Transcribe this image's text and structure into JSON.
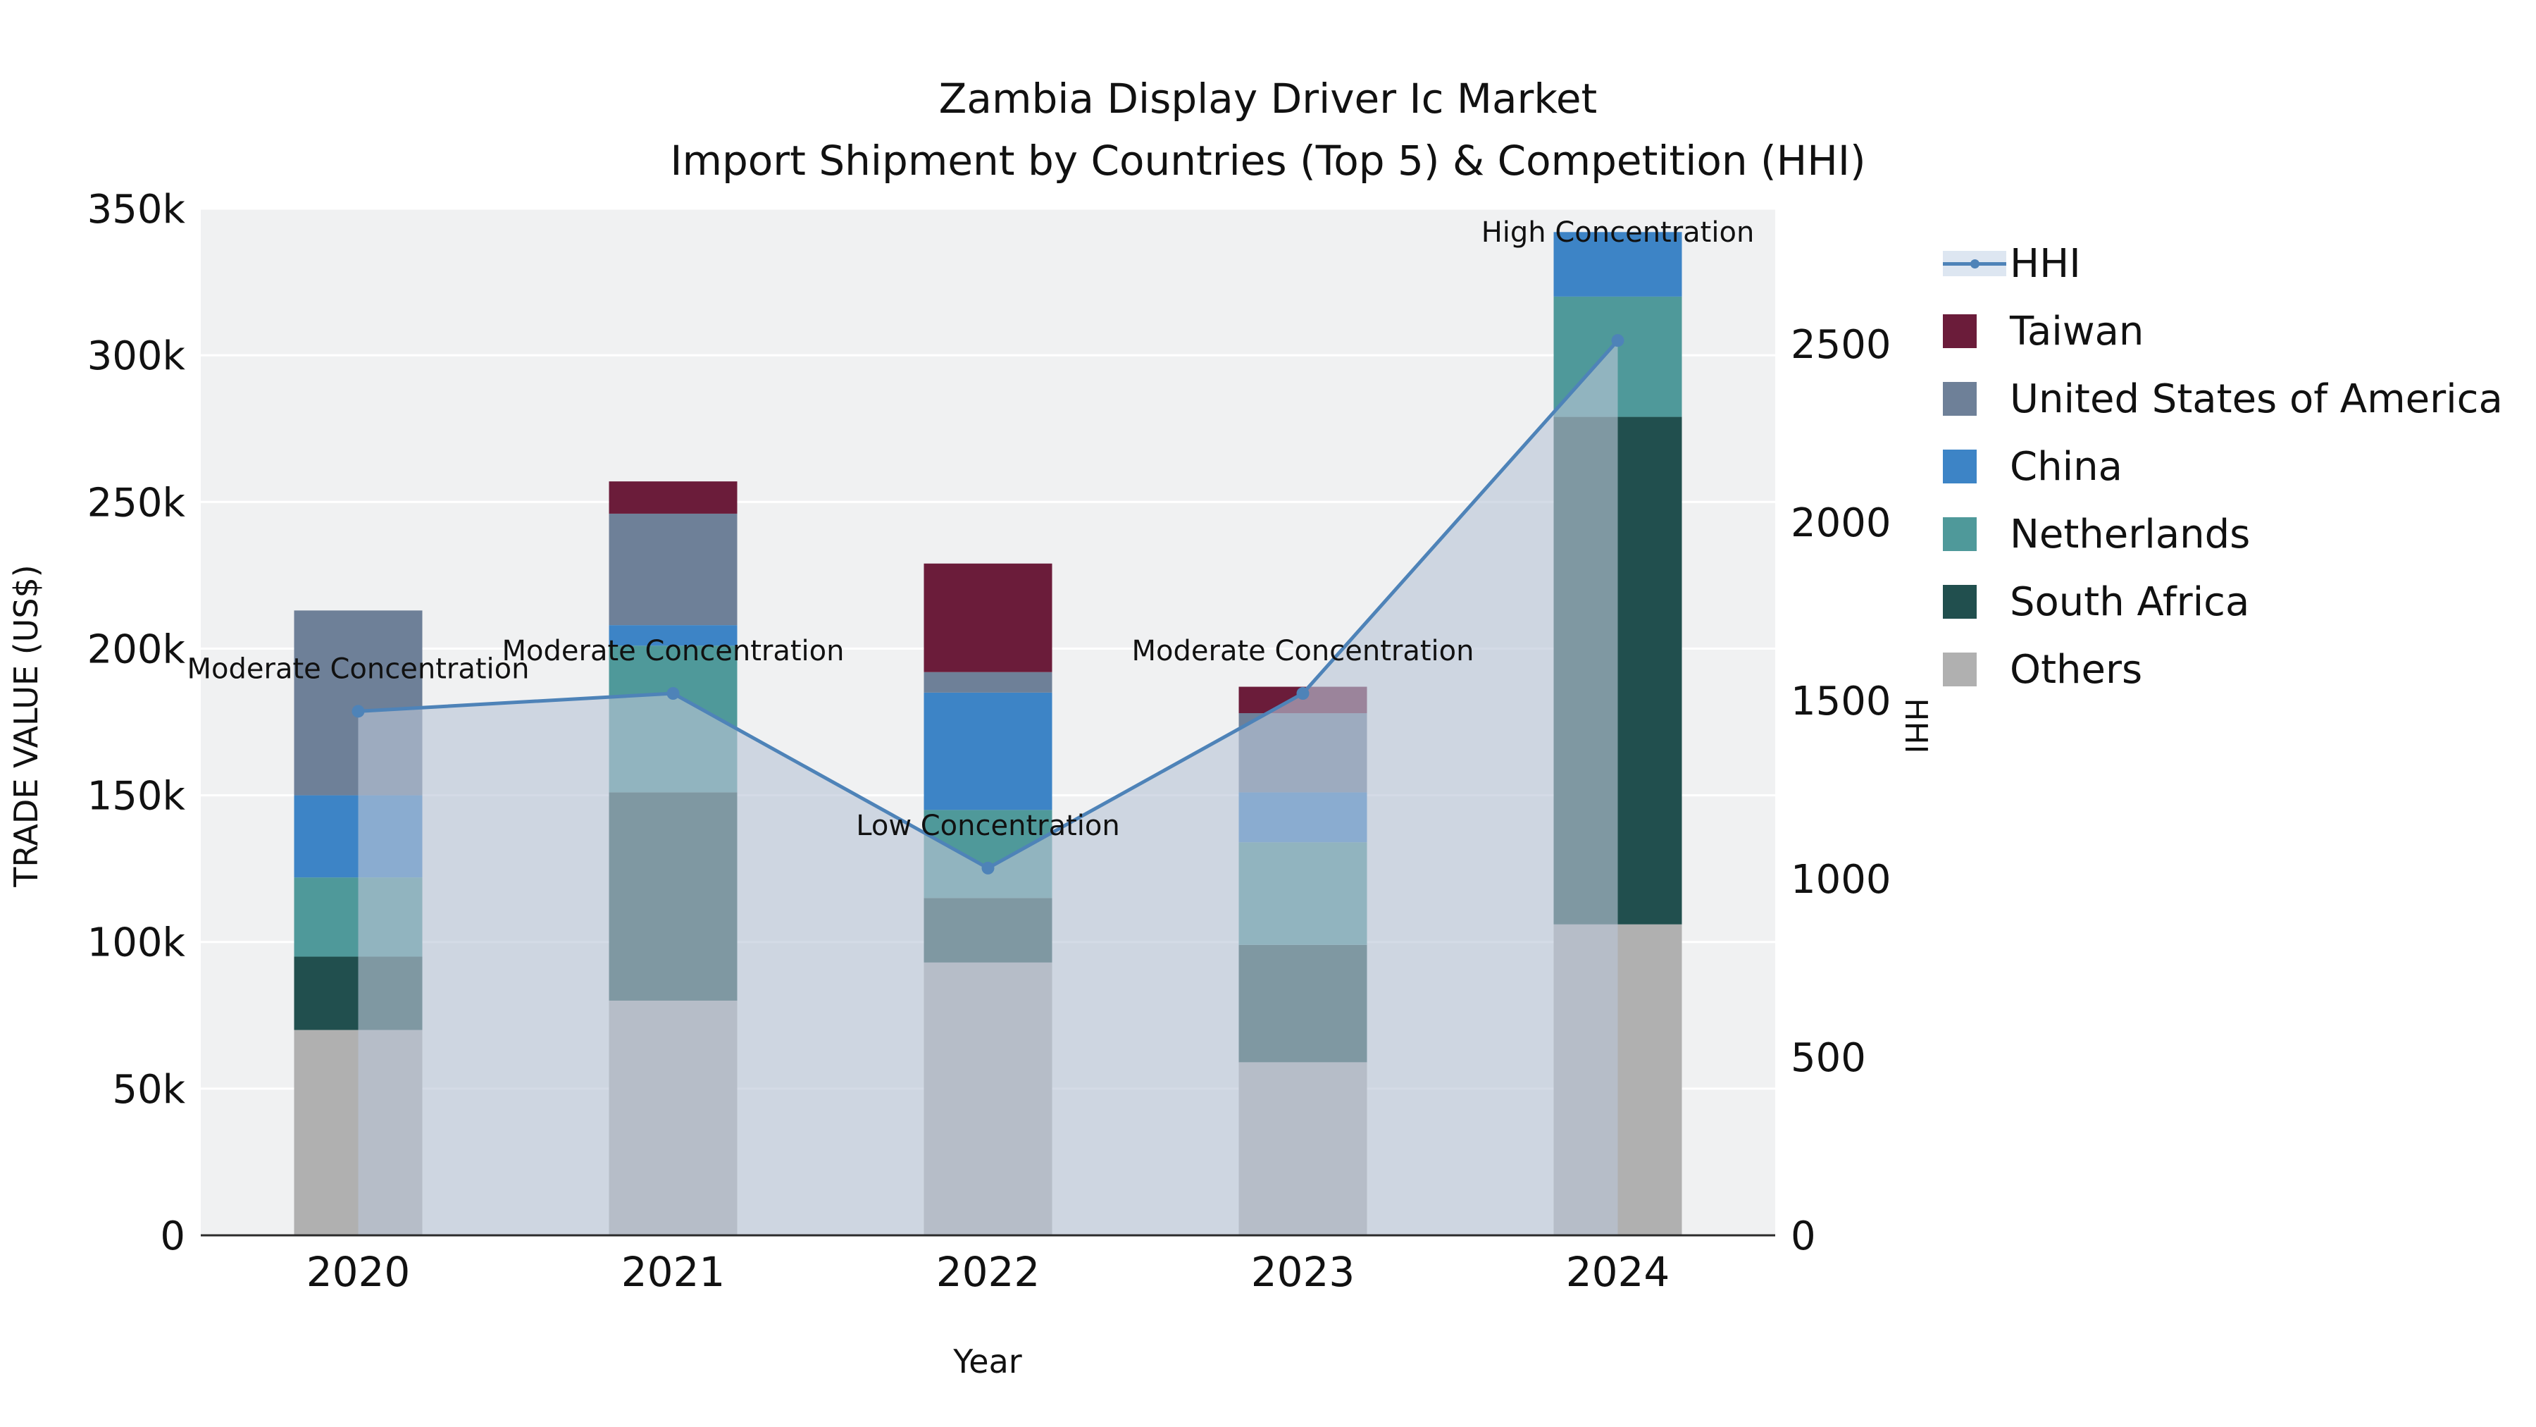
{
  "figure": {
    "title_line1": "Zambia Display Driver Ic Market",
    "title_line2": "Import Shipment by Countries (Top 5) & Competition (HHI)"
  },
  "chart_data": {
    "type": "bar",
    "subtype": "stacked-bars-with-line-overlay",
    "title": "Zambia Display Driver Ic Market Import Shipment by Countries (Top 5) & Competition (HHI)",
    "xlabel": "Year",
    "ylabel_left": "TRADE VALUE (US$)",
    "ylabel_right": "HHI",
    "categories": [
      "2020",
      "2021",
      "2022",
      "2023",
      "2024"
    ],
    "series": [
      {
        "name": "Others",
        "color": "#b0b0b0",
        "values": [
          70000,
          80000,
          93000,
          59000,
          106000
        ]
      },
      {
        "name": "South Africa",
        "color": "#214f4e",
        "values": [
          25000,
          71000,
          22000,
          40000,
          173000
        ]
      },
      {
        "name": "Netherlands",
        "color": "#4f999a",
        "values": [
          27000,
          50000,
          30000,
          35000,
          41000
        ]
      },
      {
        "name": "China",
        "color": "#3d84c6",
        "values": [
          28000,
          7000,
          40000,
          17000,
          22000
        ]
      },
      {
        "name": "United States of America",
        "color": "#6e8098",
        "values": [
          63000,
          38000,
          7000,
          27000,
          0
        ]
      },
      {
        "name": "Taiwan",
        "color": "#6b1c3a",
        "values": [
          0,
          11000,
          37000,
          9000,
          0
        ]
      }
    ],
    "line_series": {
      "name": "HHI",
      "color": "#4e83b8",
      "area_color": "rgba(186,197,214,0.62)",
      "values": [
        1470,
        1520,
        1030,
        1520,
        2510
      ],
      "point_labels": [
        "Moderate Concentration",
        "Moderate Concentration",
        "Low Concentration",
        "Moderate Concentration",
        "High Concentration"
      ],
      "label_dy": [
        -47,
        -47,
        -47,
        -47,
        -140
      ]
    },
    "axes": {
      "left": {
        "min": 0,
        "max": 350000,
        "ticks": [
          {
            "v": 0,
            "label": "0"
          },
          {
            "v": 50000,
            "label": "50k"
          },
          {
            "v": 100000,
            "label": "100k"
          },
          {
            "v": 150000,
            "label": "150k"
          },
          {
            "v": 200000,
            "label": "200k"
          },
          {
            "v": 250000,
            "label": "250k"
          },
          {
            "v": 300000,
            "label": "300k"
          },
          {
            "v": 350000,
            "label": "350k"
          }
        ]
      },
      "right": {
        "min": 0,
        "max": 2880,
        "ticks": [
          {
            "v": 0,
            "label": "0"
          },
          {
            "v": 500,
            "label": "500"
          },
          {
            "v": 1000,
            "label": "1000"
          },
          {
            "v": 1500,
            "label": "1500"
          },
          {
            "v": 2000,
            "label": "2000"
          },
          {
            "v": 2500,
            "label": "2500"
          }
        ]
      }
    },
    "legend_order": [
      "HHI",
      "Taiwan",
      "United States of America",
      "China",
      "Netherlands",
      "South Africa",
      "Others"
    ],
    "layout": {
      "plot_bg": "#f0f1f2",
      "grid_color": "#ffffff",
      "axis_line_color": "#2b2b2b",
      "grid_on": true,
      "legend_position": "right"
    }
  }
}
